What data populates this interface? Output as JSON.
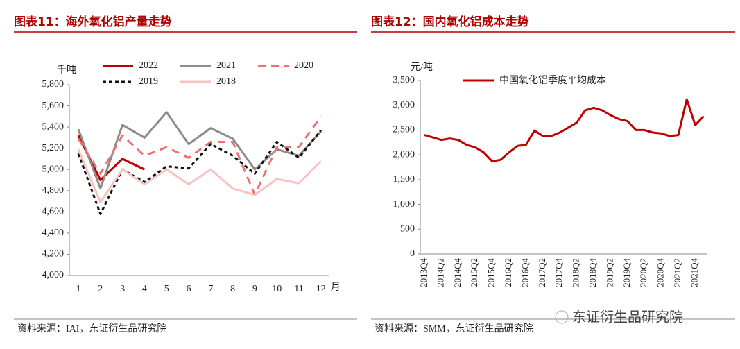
{
  "chart_data": [
    {
      "type": "line",
      "title": "图表11：海外氧化铝产量走势",
      "y_unit": "千吨",
      "x_unit": "月",
      "categories": [
        "1",
        "2",
        "3",
        "4",
        "5",
        "6",
        "7",
        "8",
        "9",
        "10",
        "11",
        "12"
      ],
      "series": [
        {
          "name": "2022",
          "color": "#c00000",
          "dash": "solid",
          "values": [
            5320,
            4900,
            5100,
            5000,
            null,
            null,
            null,
            null,
            null,
            null,
            null,
            null
          ]
        },
        {
          "name": "2021",
          "color": "#8c8c8c",
          "dash": "solid",
          "values": [
            5380,
            4820,
            5420,
            5300,
            5540,
            5240,
            5390,
            5290,
            5000,
            5190,
            5130,
            5360
          ]
        },
        {
          "name": "2020",
          "color": "#f07070",
          "dash": "long",
          "values": [
            5290,
            4960,
            5320,
            5130,
            5210,
            5110,
            5260,
            5260,
            4760,
            5210,
            5210,
            5500
          ]
        },
        {
          "name": "2019",
          "color": "#111111",
          "dash": "short",
          "values": [
            5150,
            4580,
            5000,
            4880,
            5030,
            5010,
            5240,
            5130,
            4960,
            5260,
            5110,
            5370
          ]
        },
        {
          "name": "2018",
          "color": "#f7c2c2",
          "dash": "solid",
          "values": [
            5190,
            4690,
            5000,
            4860,
            5000,
            4860,
            5000,
            4820,
            4760,
            4910,
            4870,
            5080
          ]
        }
      ],
      "ylim": [
        4000,
        5800
      ],
      "yticks": [
        {
          "value": 4000,
          "label": "4,000"
        },
        {
          "value": 4200,
          "label": "4,200"
        },
        {
          "value": 4400,
          "label": "4,400"
        },
        {
          "value": 4600,
          "label": "4,600"
        },
        {
          "value": 4800,
          "label": "4,800"
        },
        {
          "value": 5000,
          "label": "5,000"
        },
        {
          "value": 5200,
          "label": "5,200"
        },
        {
          "value": 5400,
          "label": "5,400"
        },
        {
          "value": 5600,
          "label": "5,600"
        },
        {
          "value": 5800,
          "label": "5,800"
        }
      ],
      "source": "资料来源：IAI，东证衍生品研究院"
    },
    {
      "type": "line",
      "title": "图表12：国内氧化铝成本走势",
      "y_unit": "元/吨",
      "categories": [
        "2013Q4",
        null,
        "2014Q2",
        null,
        "2014Q4",
        null,
        "2015Q2",
        null,
        "2015Q4",
        null,
        "2016Q2",
        null,
        "2016Q4",
        null,
        "2017Q2",
        null,
        "2017Q4",
        null,
        "2018Q2",
        null,
        "2018Q4",
        null,
        "2019Q2",
        null,
        "2019Q4",
        null,
        "2020Q2",
        null,
        "2020Q4",
        null,
        "2021Q2",
        null,
        "2021Q4",
        null
      ],
      "series": [
        {
          "name": "中国氧化铝季度平均成本",
          "color": "#c00000",
          "dash": "solid",
          "values": [
            2400,
            2350,
            2300,
            2330,
            2300,
            2200,
            2150,
            2050,
            1870,
            1900,
            2050,
            2180,
            2200,
            2490,
            2380,
            2380,
            2450,
            2550,
            2650,
            2900,
            2950,
            2900,
            2800,
            2720,
            2680,
            2500,
            2500,
            2450,
            2430,
            2380,
            2400,
            3120,
            2600,
            2780
          ]
        }
      ],
      "ylim": [
        0,
        3500
      ],
      "yticks": [
        0,
        500,
        {
          "value": 1000,
          "label": "1,000"
        },
        {
          "value": 1500,
          "label": "1,500"
        },
        {
          "value": 2000,
          "label": "2,000"
        },
        {
          "value": 2500,
          "label": "2,500"
        },
        {
          "value": 3000,
          "label": "3,000"
        },
        {
          "value": 3500,
          "label": "3,500"
        }
      ],
      "source": "资料来源：SMM，东证衍生品研究院"
    }
  ],
  "watermark": "东证衍生品研究院"
}
